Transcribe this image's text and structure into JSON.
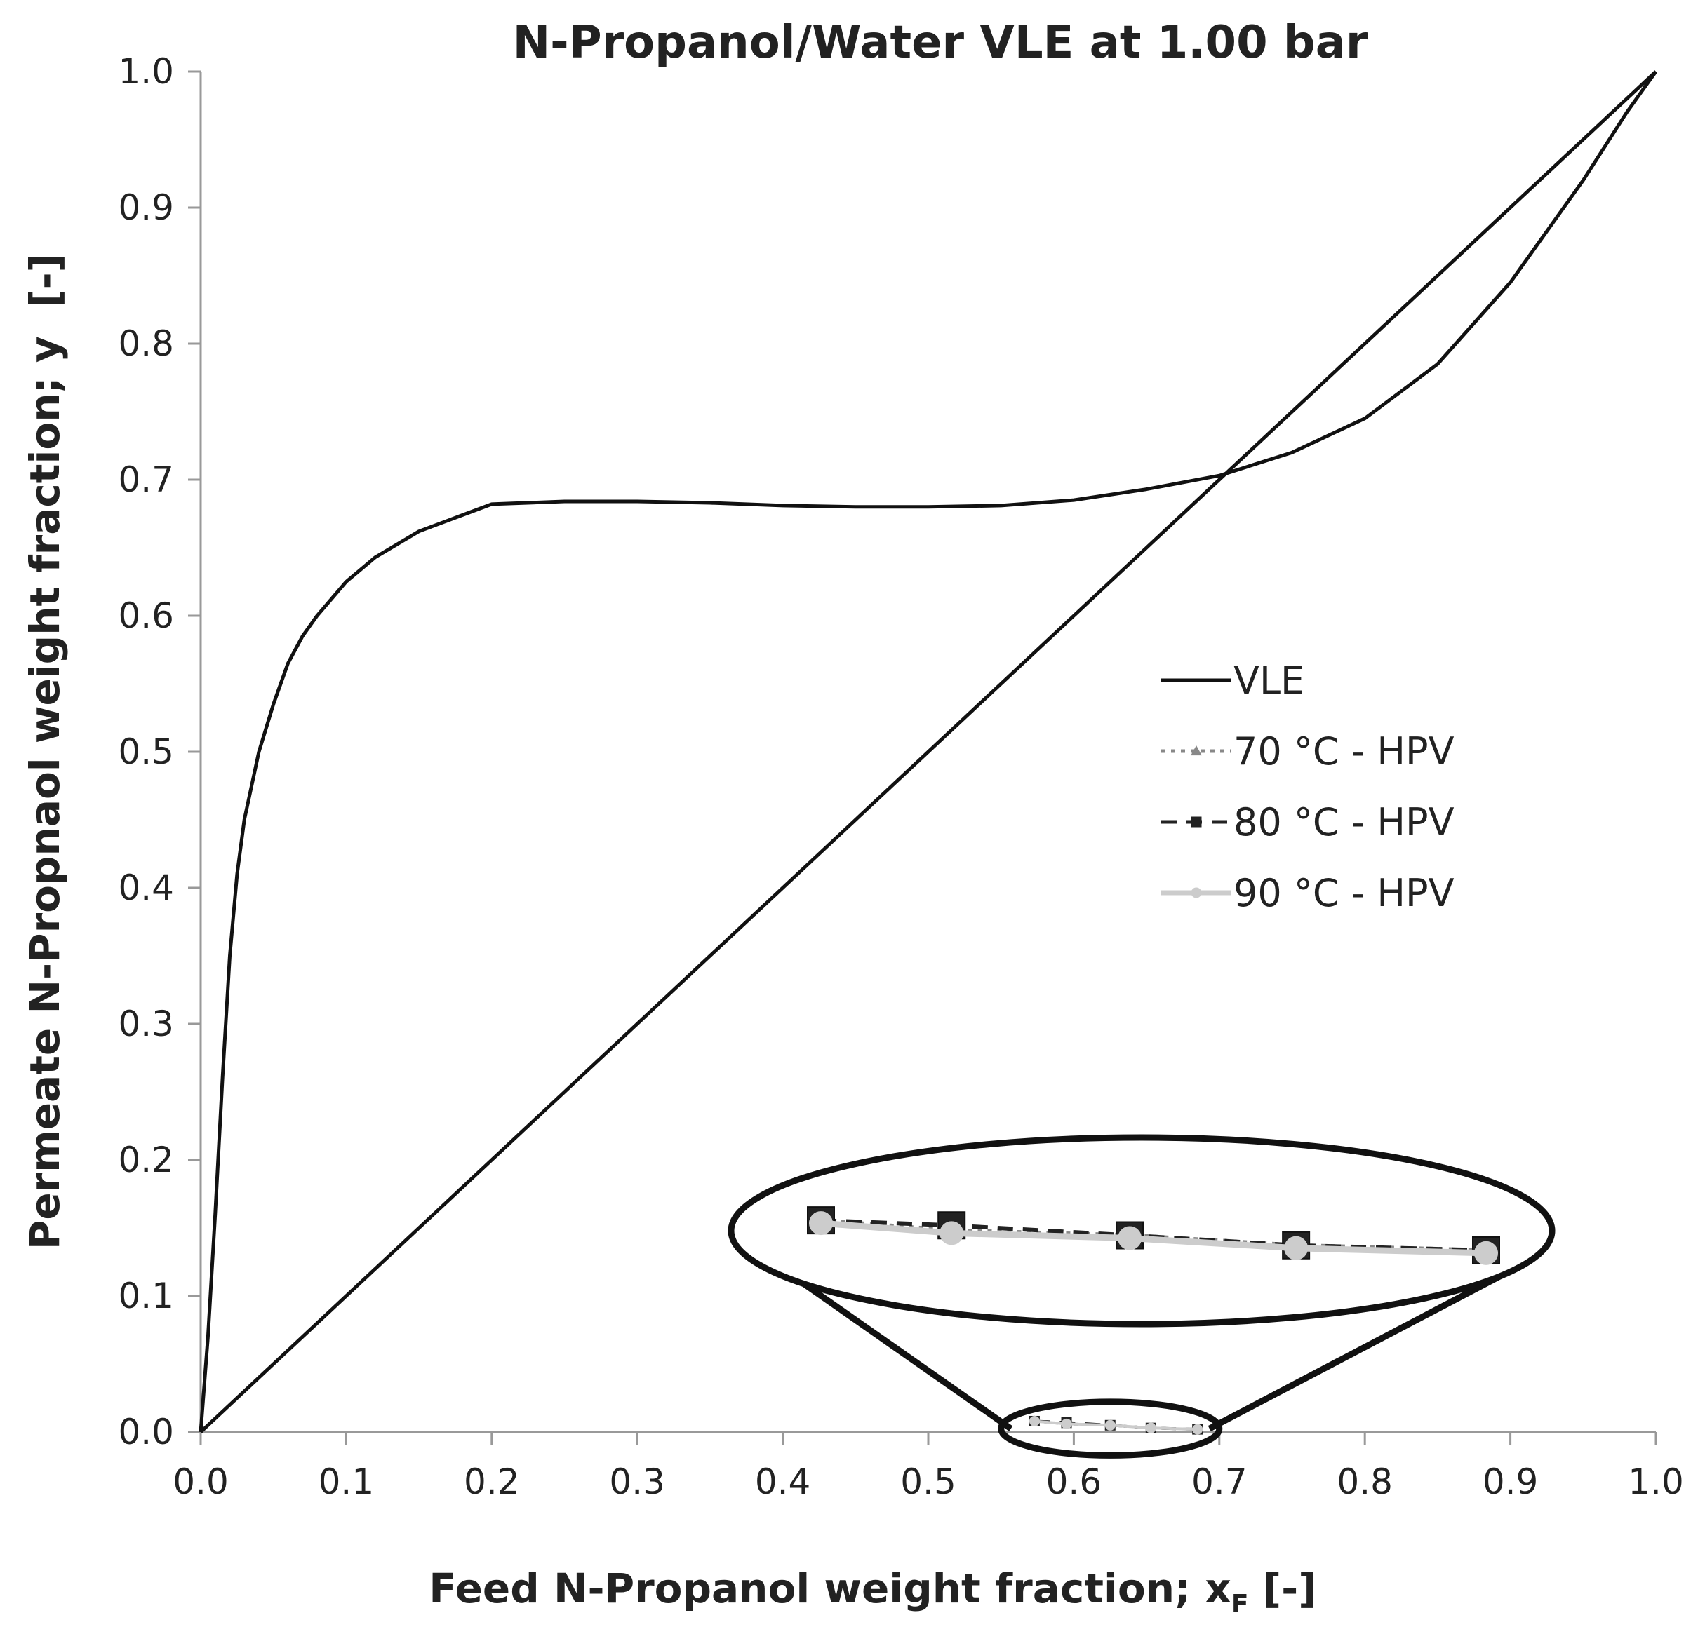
{
  "chart_data": {
    "type": "line",
    "title": "N-Propanol/Water VLE at 1.00 bar",
    "xlabel": "Feed N-Propanol weight fraction; x",
    "xlabel_subscript": "F",
    "xlabel_suffix": " [-]",
    "ylabel": "Permeate N-Propnaol weight fraction; y  [-]",
    "xlim": [
      0,
      1
    ],
    "ylim": [
      0,
      1
    ],
    "xticks": [
      "0.0",
      "0.1",
      "0.2",
      "0.3",
      "0.4",
      "0.5",
      "0.6",
      "0.7",
      "0.8",
      "0.9",
      "1.0"
    ],
    "yticks": [
      "0.0",
      "0.1",
      "0.2",
      "0.3",
      "0.4",
      "0.5",
      "0.6",
      "0.7",
      "0.8",
      "0.9",
      "1.0"
    ],
    "grid": false,
    "legend_position": "center-right",
    "series": [
      {
        "name": "VLE",
        "style": "solid",
        "color": "#111111",
        "x": [
          0,
          0.005,
          0.01,
          0.015,
          0.02,
          0.025,
          0.03,
          0.04,
          0.05,
          0.06,
          0.07,
          0.08,
          0.1,
          0.12,
          0.15,
          0.18,
          0.2,
          0.25,
          0.3,
          0.35,
          0.4,
          0.45,
          0.5,
          0.55,
          0.6,
          0.65,
          0.7,
          0.75,
          0.8,
          0.85,
          0.9,
          0.95,
          0.98,
          1.0
        ],
        "y": [
          0,
          0.07,
          0.16,
          0.26,
          0.35,
          0.41,
          0.45,
          0.5,
          0.535,
          0.565,
          0.585,
          0.6,
          0.625,
          0.643,
          0.662,
          0.674,
          0.682,
          0.684,
          0.684,
          0.683,
          0.681,
          0.68,
          0.68,
          0.681,
          0.685,
          0.693,
          0.703,
          0.72,
          0.745,
          0.785,
          0.845,
          0.92,
          0.97,
          1.0
        ]
      },
      {
        "name": "x = y",
        "style": "solid",
        "color": "#111111",
        "x": [
          0,
          1
        ],
        "y": [
          0,
          1
        ]
      },
      {
        "name": "70 °C - HPV",
        "style": "dotted",
        "marker": "triangle",
        "color": "#888888",
        "x": [
          0.573,
          0.595,
          0.625,
          0.653,
          0.685
        ],
        "y": [
          0.008,
          0.006,
          0.005,
          0.003,
          0.002
        ]
      },
      {
        "name": "80 °C - HPV",
        "style": "dashed",
        "marker": "square",
        "color": "#222222",
        "x": [
          0.573,
          0.595,
          0.625,
          0.653,
          0.685
        ],
        "y": [
          0.008,
          0.007,
          0.005,
          0.003,
          0.002
        ]
      },
      {
        "name": "90 °C - HPV",
        "style": "solid",
        "marker": "circle",
        "color": "#cccccc",
        "x": [
          0.573,
          0.595,
          0.625,
          0.653,
          0.685
        ],
        "y": [
          0.008,
          0.006,
          0.005,
          0.003,
          0.002
        ]
      }
    ],
    "legend": [
      "VLE",
      "70 °C - HPV",
      "80 °C - HPV",
      "90 °C - HPV"
    ],
    "annotation": "magnified inset of HPV data region",
    "zoom_region": {
      "x_range": [
        0.55,
        0.7
      ],
      "y_range": [
        -0.01,
        0.015
      ]
    }
  }
}
